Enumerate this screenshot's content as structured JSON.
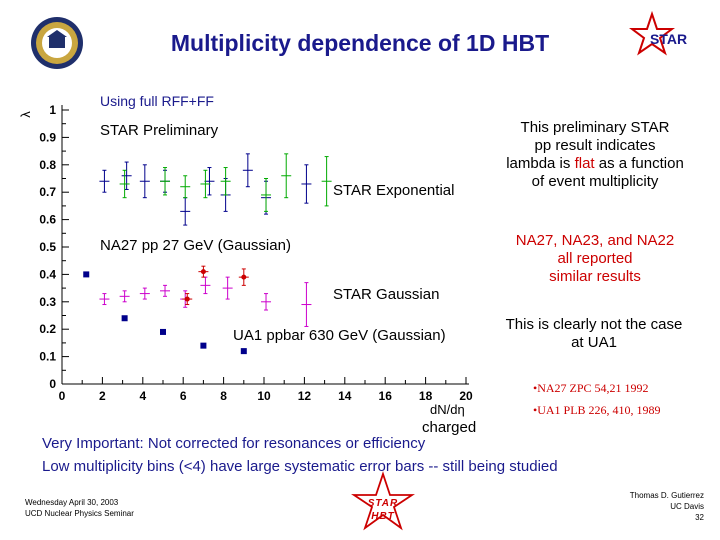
{
  "slide": {
    "title": "Multiplicity dependence of 1D HBT",
    "logo_left": "uc-davis-seal",
    "logo_right": "STAR",
    "note_full_rff": "Using full RFF+FF",
    "star_preliminary": "STAR Preliminary",
    "star_exponential": "STAR Exponential",
    "na27_label": "NA27 pp 27 GeV (Gaussian)",
    "star_gaussian": "STAR Gaussian",
    "ua1_label": "UA1 ppbar 630 GeV (Gaussian)",
    "text_block_1": {
      "line1": "This preliminary STAR",
      "line2": "pp result indicates",
      "line3_pre": "lambda is ",
      "line3_flat": "flat",
      "line3_post": " as a function",
      "line4": "of event multiplicity"
    },
    "text_block_2": {
      "line1": "NA27, NA23, and NA22",
      "line2": "all reported",
      "line3": "similar results"
    },
    "text_block_3": {
      "line1": "This is clearly not the case",
      "line2": "at UA1"
    },
    "refs": [
      "•NA27 ZPC 54,21 1992",
      "•UA1 PLB 226, 410, 1989"
    ],
    "charged_label": "charged",
    "important_line1": "Very Important: Not corrected for resonances or efficiency",
    "important_line2": "Low multiplicity bins (<4) have large systematic error bars -- still being studied",
    "footer_left": [
      "Wednesday April 30, 2003",
      "UCD Nuclear Physics Seminar"
    ],
    "footer_star": [
      "STAR",
      "HBT"
    ],
    "footer_right": [
      "Thomas D. Gutierrez",
      "UC Davis",
      "32"
    ],
    "colors": {
      "title": "#1a1a8c",
      "blue": "#00008b",
      "green": "#00aa00",
      "magenta": "#cc00cc",
      "red": "#cc0000"
    }
  },
  "chart_data": {
    "type": "scatter",
    "xlabel": "dN/dη",
    "ylabel": "λ",
    "xlim": [
      0,
      20
    ],
    "ylim": [
      0,
      1
    ],
    "xticks": [
      "0",
      "2",
      "4",
      "6",
      "8",
      "10",
      "12",
      "14",
      "16",
      "18",
      "20"
    ],
    "yticks": [
      "0",
      "0.1",
      "0.2",
      "0.3",
      "0.4",
      "0.5",
      "0.6",
      "0.7",
      "0.8",
      "0.9",
      "1"
    ],
    "series": [
      {
        "name": "STAR Exponential",
        "color": "#00008b",
        "marker": "plus",
        "points": [
          [
            2.1,
            0.74
          ],
          [
            3.2,
            0.76
          ],
          [
            4.1,
            0.74
          ],
          [
            5.1,
            0.74
          ],
          [
            6.1,
            0.63
          ],
          [
            7.3,
            0.74
          ],
          [
            8.1,
            0.69
          ],
          [
            9.2,
            0.78
          ],
          [
            10.1,
            0.68
          ],
          [
            12.1,
            0.73
          ]
        ],
        "err": [
          0.04,
          0.05,
          0.06,
          0.04,
          0.05,
          0.05,
          0.06,
          0.06,
          0.06,
          0.07
        ]
      },
      {
        "color": "#00aa00",
        "marker": "plus",
        "points": [
          [
            3.1,
            0.73
          ],
          [
            5.1,
            0.74
          ],
          [
            6.1,
            0.72
          ],
          [
            7.1,
            0.73
          ],
          [
            8.1,
            0.74
          ],
          [
            10.1,
            0.69
          ],
          [
            11.1,
            0.76
          ],
          [
            13.1,
            0.74
          ]
        ],
        "err": [
          0.05,
          0.05,
          0.04,
          0.05,
          0.05,
          0.06,
          0.08,
          0.09
        ]
      },
      {
        "name": "STAR Gaussian",
        "color": "#cc00cc",
        "marker": "plus",
        "points": [
          [
            2.1,
            0.31
          ],
          [
            3.1,
            0.32
          ],
          [
            4.1,
            0.33
          ],
          [
            5.1,
            0.34
          ],
          [
            6.1,
            0.31
          ],
          [
            7.1,
            0.36
          ],
          [
            8.2,
            0.35
          ],
          [
            10.1,
            0.3
          ],
          [
            12.1,
            0.29
          ]
        ],
        "err": [
          0.02,
          0.02,
          0.02,
          0.02,
          0.03,
          0.03,
          0.04,
          0.03,
          0.08
        ]
      },
      {
        "name": "NA27 pp 27 GeV (Gaussian)",
        "color": "#cc0000",
        "marker": "dot",
        "points": [
          [
            6.2,
            0.31
          ],
          [
            7.0,
            0.41
          ],
          [
            9.0,
            0.39
          ]
        ],
        "err": [
          0.02,
          0.02,
          0.03
        ]
      },
      {
        "name": "UA1 ppbar 630 GeV (Gaussian)",
        "color": "#00008b",
        "marker": "square",
        "points": [
          [
            1.2,
            0.4
          ],
          [
            3.1,
            0.24
          ],
          [
            5.0,
            0.19
          ],
          [
            7.0,
            0.14
          ],
          [
            9.0,
            0.12
          ]
        ]
      }
    ]
  }
}
